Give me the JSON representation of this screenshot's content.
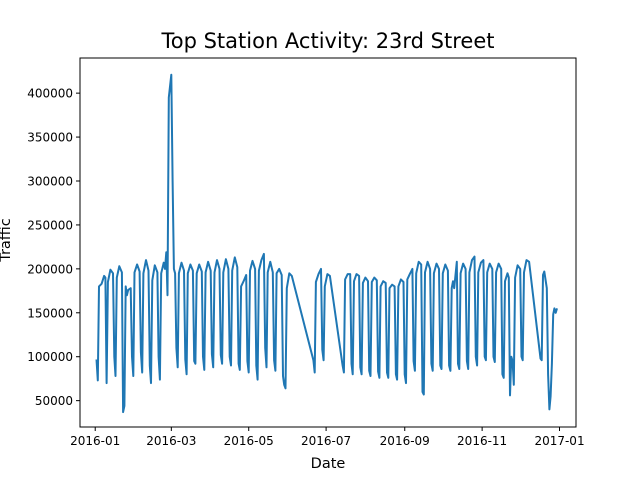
{
  "chart_data": {
    "type": "line",
    "title": "Top Station Activity: 23rd Street",
    "xlabel": "Date",
    "ylabel": "Traffic",
    "x_ticks": [
      "2016-01",
      "2016-03",
      "2016-05",
      "2016-07",
      "2016-09",
      "2016-11",
      "2017-01"
    ],
    "y_ticks": [
      50000,
      100000,
      150000,
      200000,
      250000,
      300000,
      350000,
      400000
    ],
    "ylim": [
      20000,
      440000
    ],
    "xlim": [
      "2015-12-20",
      "2017-01-14"
    ],
    "grid": false,
    "series_color": "#1f77b4",
    "series": [
      {
        "points": [
          [
            "2016-01-02",
            97000
          ],
          [
            "2016-01-03",
            73000
          ],
          [
            "2016-01-04",
            180000
          ],
          [
            "2016-01-06",
            183000
          ],
          [
            "2016-01-08",
            192000
          ],
          [
            "2016-01-09",
            190000
          ],
          [
            "2016-01-10",
            70000
          ],
          [
            "2016-01-11",
            185000
          ],
          [
            "2016-01-13",
            199000
          ],
          [
            "2016-01-15",
            195000
          ],
          [
            "2016-01-16",
            100000
          ],
          [
            "2016-01-17",
            78000
          ],
          [
            "2016-01-18",
            190000
          ],
          [
            "2016-01-20",
            203000
          ],
          [
            "2016-01-22",
            196000
          ],
          [
            "2016-01-23",
            37000
          ],
          [
            "2016-01-24",
            44000
          ],
          [
            "2016-01-25",
            180000
          ],
          [
            "2016-01-26",
            170000
          ],
          [
            "2016-01-27",
            176000
          ],
          [
            "2016-01-29",
            178000
          ],
          [
            "2016-01-30",
            100000
          ],
          [
            "2016-01-31",
            78000
          ],
          [
            "2016-02-01",
            196000
          ],
          [
            "2016-02-03",
            205000
          ],
          [
            "2016-02-05",
            197000
          ],
          [
            "2016-02-06",
            105000
          ],
          [
            "2016-02-07",
            82000
          ],
          [
            "2016-02-08",
            195000
          ],
          [
            "2016-02-10",
            210000
          ],
          [
            "2016-02-12",
            198000
          ],
          [
            "2016-02-13",
            90000
          ],
          [
            "2016-02-14",
            70000
          ],
          [
            "2016-02-15",
            187000
          ],
          [
            "2016-02-17",
            204000
          ],
          [
            "2016-02-19",
            196000
          ],
          [
            "2016-02-20",
            100000
          ],
          [
            "2016-02-21",
            74000
          ],
          [
            "2016-02-22",
            195000
          ],
          [
            "2016-02-24",
            207000
          ],
          [
            "2016-02-25",
            200000
          ],
          [
            "2016-02-26",
            219000
          ],
          [
            "2016-02-27",
            170000
          ],
          [
            "2016-02-28",
            395000
          ],
          [
            "2016-03-01",
            421000
          ],
          [
            "2016-03-02",
            300000
          ],
          [
            "2016-03-03",
            200000
          ],
          [
            "2016-03-04",
            195000
          ],
          [
            "2016-03-05",
            110000
          ],
          [
            "2016-03-06",
            88000
          ],
          [
            "2016-03-07",
            195000
          ],
          [
            "2016-03-09",
            207000
          ],
          [
            "2016-03-11",
            198000
          ],
          [
            "2016-03-12",
            97000
          ],
          [
            "2016-03-13",
            80000
          ],
          [
            "2016-03-14",
            195000
          ],
          [
            "2016-03-16",
            205000
          ],
          [
            "2016-03-18",
            198000
          ],
          [
            "2016-03-19",
            95000
          ],
          [
            "2016-03-20",
            92000
          ],
          [
            "2016-03-21",
            195000
          ],
          [
            "2016-03-23",
            205000
          ],
          [
            "2016-03-25",
            197000
          ],
          [
            "2016-03-26",
            100000
          ],
          [
            "2016-03-27",
            85000
          ],
          [
            "2016-03-28",
            196000
          ],
          [
            "2016-03-30",
            208000
          ],
          [
            "2016-04-01",
            198000
          ],
          [
            "2016-04-02",
            103000
          ],
          [
            "2016-04-03",
            88000
          ],
          [
            "2016-04-04",
            196000
          ],
          [
            "2016-04-06",
            210000
          ],
          [
            "2016-04-08",
            200000
          ],
          [
            "2016-04-09",
            102000
          ],
          [
            "2016-04-10",
            92000
          ],
          [
            "2016-04-11",
            196000
          ],
          [
            "2016-04-13",
            211000
          ],
          [
            "2016-04-15",
            200000
          ],
          [
            "2016-04-16",
            100000
          ],
          [
            "2016-04-17",
            90000
          ],
          [
            "2016-04-18",
            198000
          ],
          [
            "2016-04-20",
            213000
          ],
          [
            "2016-04-22",
            202000
          ],
          [
            "2016-04-23",
            92000
          ],
          [
            "2016-04-24",
            85000
          ],
          [
            "2016-04-25",
            180000
          ],
          [
            "2016-04-27",
            186000
          ],
          [
            "2016-04-29",
            193000
          ],
          [
            "2016-04-30",
            95000
          ],
          [
            "2016-05-01",
            82000
          ],
          [
            "2016-05-02",
            198000
          ],
          [
            "2016-05-04",
            209000
          ],
          [
            "2016-05-06",
            200000
          ],
          [
            "2016-05-07",
            90000
          ],
          [
            "2016-05-08",
            74000
          ],
          [
            "2016-05-09",
            198000
          ],
          [
            "2016-05-11",
            210000
          ],
          [
            "2016-05-13",
            217000
          ],
          [
            "2016-05-14",
            110000
          ],
          [
            "2016-05-15",
            88000
          ],
          [
            "2016-05-16",
            196000
          ],
          [
            "2016-05-18",
            208000
          ],
          [
            "2016-05-20",
            196000
          ],
          [
            "2016-05-21",
            96000
          ],
          [
            "2016-05-22",
            84000
          ],
          [
            "2016-05-23",
            195000
          ],
          [
            "2016-05-25",
            200000
          ],
          [
            "2016-05-27",
            193000
          ],
          [
            "2016-05-28",
            78000
          ],
          [
            "2016-05-29",
            68000
          ],
          [
            "2016-05-30",
            64000
          ],
          [
            "2016-05-31",
            178000
          ],
          [
            "2016-06-02",
            195000
          ],
          [
            "2016-06-04",
            192000
          ],
          [
            "2016-06-21",
            96000
          ],
          [
            "2016-06-22",
            82000
          ],
          [
            "2016-06-23",
            185000
          ],
          [
            "2016-06-25",
            194000
          ],
          [
            "2016-06-27",
            200000
          ],
          [
            "2016-06-28",
            108000
          ],
          [
            "2016-06-29",
            96000
          ],
          [
            "2016-06-30",
            180000
          ],
          [
            "2016-07-02",
            194000
          ],
          [
            "2016-07-04",
            192000
          ],
          [
            "2016-07-14",
            90000
          ],
          [
            "2016-07-15",
            82000
          ],
          [
            "2016-07-16",
            188000
          ],
          [
            "2016-07-18",
            194000
          ],
          [
            "2016-07-20",
            194000
          ],
          [
            "2016-07-21",
            92000
          ],
          [
            "2016-07-22",
            80000
          ],
          [
            "2016-07-23",
            186000
          ],
          [
            "2016-07-25",
            194000
          ],
          [
            "2016-07-27",
            192000
          ],
          [
            "2016-07-28",
            88000
          ],
          [
            "2016-07-29",
            80000
          ],
          [
            "2016-07-30",
            184000
          ],
          [
            "2016-08-01",
            190000
          ],
          [
            "2016-08-03",
            186000
          ],
          [
            "2016-08-04",
            84000
          ],
          [
            "2016-08-05",
            78000
          ],
          [
            "2016-08-06",
            185000
          ],
          [
            "2016-08-08",
            190000
          ],
          [
            "2016-08-10",
            187000
          ],
          [
            "2016-08-11",
            83000
          ],
          [
            "2016-08-12",
            76000
          ],
          [
            "2016-08-13",
            180000
          ],
          [
            "2016-08-15",
            186000
          ],
          [
            "2016-08-17",
            184000
          ],
          [
            "2016-08-18",
            82000
          ],
          [
            "2016-08-19",
            76000
          ],
          [
            "2016-08-20",
            178000
          ],
          [
            "2016-08-22",
            182000
          ],
          [
            "2016-08-24",
            180000
          ],
          [
            "2016-08-25",
            80000
          ],
          [
            "2016-08-26",
            74000
          ],
          [
            "2016-08-27",
            180000
          ],
          [
            "2016-08-29",
            188000
          ],
          [
            "2016-08-31",
            185000
          ],
          [
            "2016-09-01",
            80000
          ],
          [
            "2016-09-02",
            70000
          ],
          [
            "2016-09-03",
            188000
          ],
          [
            "2016-09-05",
            194000
          ],
          [
            "2016-09-07",
            200000
          ],
          [
            "2016-09-08",
            95000
          ],
          [
            "2016-09-09",
            84000
          ],
          [
            "2016-09-10",
            195000
          ],
          [
            "2016-09-12",
            208000
          ],
          [
            "2016-09-14",
            205000
          ],
          [
            "2016-09-15",
            60000
          ],
          [
            "2016-09-16",
            57000
          ],
          [
            "2016-09-17",
            196000
          ],
          [
            "2016-09-19",
            208000
          ],
          [
            "2016-09-21",
            200000
          ],
          [
            "2016-09-22",
            92000
          ],
          [
            "2016-09-23",
            84000
          ],
          [
            "2016-09-24",
            195000
          ],
          [
            "2016-09-26",
            206000
          ],
          [
            "2016-09-28",
            200000
          ],
          [
            "2016-09-29",
            90000
          ],
          [
            "2016-09-30",
            86000
          ],
          [
            "2016-10-01",
            195000
          ],
          [
            "2016-10-03",
            205000
          ],
          [
            "2016-10-05",
            198000
          ],
          [
            "2016-10-06",
            90000
          ],
          [
            "2016-10-07",
            84000
          ],
          [
            "2016-10-08",
            178000
          ],
          [
            "2016-10-09",
            186000
          ],
          [
            "2016-10-10",
            178000
          ],
          [
            "2016-10-12",
            208000
          ],
          [
            "2016-10-13",
            92000
          ],
          [
            "2016-10-14",
            86000
          ],
          [
            "2016-10-15",
            195000
          ],
          [
            "2016-10-17",
            206000
          ],
          [
            "2016-10-19",
            200000
          ],
          [
            "2016-10-20",
            95000
          ],
          [
            "2016-10-21",
            86000
          ],
          [
            "2016-10-22",
            196000
          ],
          [
            "2016-10-24",
            210000
          ],
          [
            "2016-10-26",
            214000
          ],
          [
            "2016-10-27",
            100000
          ],
          [
            "2016-10-28",
            90000
          ],
          [
            "2016-10-29",
            196000
          ],
          [
            "2016-10-31",
            207000
          ],
          [
            "2016-11-02",
            210000
          ],
          [
            "2016-11-03",
            100000
          ],
          [
            "2016-11-04",
            96000
          ],
          [
            "2016-11-05",
            196000
          ],
          [
            "2016-11-07",
            206000
          ],
          [
            "2016-11-09",
            200000
          ],
          [
            "2016-11-10",
            100000
          ],
          [
            "2016-11-11",
            94000
          ],
          [
            "2016-11-12",
            196000
          ],
          [
            "2016-11-14",
            206000
          ],
          [
            "2016-11-16",
            200000
          ],
          [
            "2016-11-17",
            80000
          ],
          [
            "2016-11-18",
            76000
          ],
          [
            "2016-11-19",
            186000
          ],
          [
            "2016-11-21",
            195000
          ],
          [
            "2016-11-22",
            190000
          ],
          [
            "2016-11-23",
            56000
          ],
          [
            "2016-11-24",
            100000
          ],
          [
            "2016-11-25",
            95000
          ],
          [
            "2016-11-26",
            68000
          ],
          [
            "2016-11-27",
            190000
          ],
          [
            "2016-11-29",
            204000
          ],
          [
            "2016-12-01",
            200000
          ],
          [
            "2016-12-02",
            100000
          ],
          [
            "2016-12-03",
            96000
          ],
          [
            "2016-12-04",
            196000
          ],
          [
            "2016-12-06",
            210000
          ],
          [
            "2016-12-08",
            208000
          ],
          [
            "2016-12-17",
            98000
          ],
          [
            "2016-12-18",
            96000
          ],
          [
            "2016-12-19",
            193000
          ],
          [
            "2016-12-20",
            197000
          ],
          [
            "2016-12-22",
            178000
          ],
          [
            "2016-12-23",
            80000
          ],
          [
            "2016-12-24",
            40000
          ],
          [
            "2016-12-25",
            55000
          ],
          [
            "2016-12-26",
            92000
          ],
          [
            "2016-12-27",
            148000
          ],
          [
            "2016-12-28",
            155000
          ],
          [
            "2016-12-29",
            150000
          ],
          [
            "2016-12-30",
            155000
          ]
        ]
      }
    ]
  }
}
